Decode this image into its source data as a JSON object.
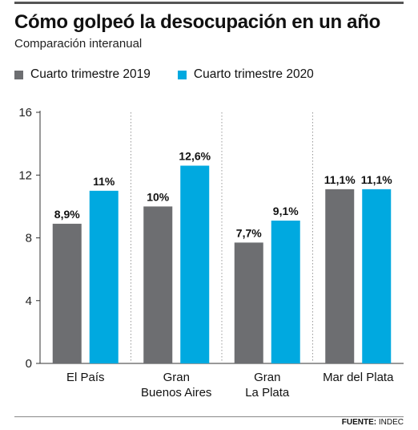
{
  "header": {
    "title": "Cómo golpeó la desocupación en un año",
    "subtitle": "Comparación interanual"
  },
  "footer": {
    "source_label": "FUENTE:",
    "source_value": "INDEC"
  },
  "colors": {
    "series_2019": "#6d6e71",
    "series_2020": "#00a9e0",
    "axis": "#333333",
    "separator": "#9a9a9a"
  },
  "chart_data": {
    "type": "bar",
    "title": "Cómo golpeó la desocupación en un año",
    "subtitle": "Comparación interanual",
    "xlabel": "",
    "ylabel": "",
    "ylim": [
      0,
      16
    ],
    "yticks": [
      "0",
      "4",
      "8",
      "12",
      "16"
    ],
    "ytick_values": [
      0,
      4,
      8,
      12,
      16
    ],
    "grid": false,
    "legend_position": "top-left",
    "categories": [
      [
        "El País"
      ],
      [
        "Gran",
        "Buenos Aires"
      ],
      [
        "Gran",
        "La Plata"
      ],
      [
        "Mar del Plata"
      ]
    ],
    "series": [
      {
        "name": "Cuarto trimestre 2019",
        "color": "#6d6e71",
        "values": [
          8.9,
          10,
          7.7,
          11.1
        ],
        "labels": [
          "8,9%",
          "10%",
          "7,7%",
          "11,1%"
        ]
      },
      {
        "name": "Cuarto trimestre 2020",
        "color": "#00a9e0",
        "values": [
          11,
          12.6,
          9.1,
          11.1
        ],
        "labels": [
          "11%",
          "12,6%",
          "9,1%",
          "11,1%"
        ]
      }
    ]
  }
}
